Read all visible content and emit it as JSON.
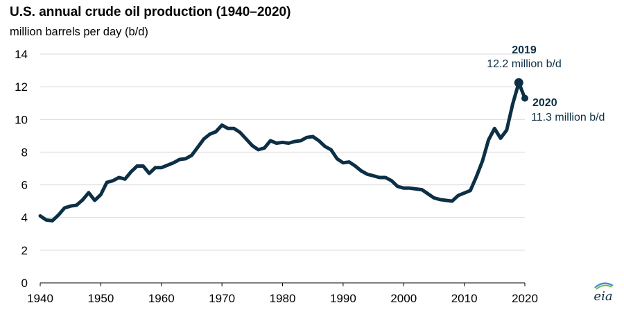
{
  "title": "U.S. annual crude oil production (1940–2020)",
  "subtitle": "million barrels per day (b/d)",
  "logo_text": "eia",
  "colors": {
    "line": "#0c2f45",
    "grid": "#d9d9d9",
    "axis": "#000000"
  },
  "chart_data": {
    "type": "line",
    "title": "U.S. annual crude oil production (1940–2020)",
    "ylabel": "million barrels per day (b/d)",
    "xlabel": "",
    "xlim": [
      1940,
      2020
    ],
    "ylim": [
      0,
      14
    ],
    "x_ticks": [
      1940,
      1950,
      1960,
      1970,
      1980,
      1990,
      2000,
      2010,
      2020
    ],
    "y_ticks": [
      0,
      2,
      4,
      6,
      8,
      10,
      12,
      14
    ],
    "grid": true,
    "legend": "none",
    "series": [
      {
        "x": [
          1940,
          1941,
          1942,
          1943,
          1944,
          1945,
          1946,
          1947,
          1948,
          1949,
          1950,
          1951,
          1952,
          1953,
          1954,
          1955,
          1956,
          1957,
          1958,
          1959,
          1960,
          1961,
          1962,
          1963,
          1964,
          1965,
          1966,
          1967,
          1968,
          1969,
          1970,
          1971,
          1972,
          1973,
          1974,
          1975,
          1976,
          1977,
          1978,
          1979,
          1980,
          1981,
          1982,
          1983,
          1984,
          1985,
          1986,
          1987,
          1988,
          1989,
          1990,
          1991,
          1992,
          1993,
          1994,
          1995,
          1996,
          1997,
          1998,
          1999,
          2000,
          2001,
          2002,
          2003,
          2004,
          2005,
          2006,
          2007,
          2008,
          2009,
          2010,
          2011,
          2012,
          2013,
          2014,
          2015,
          2016,
          2017,
          2018,
          2019,
          2020
        ],
        "values": [
          4.1,
          3.85,
          3.8,
          4.15,
          4.58,
          4.7,
          4.75,
          5.08,
          5.52,
          5.05,
          5.4,
          6.15,
          6.25,
          6.45,
          6.35,
          6.8,
          7.15,
          7.15,
          6.7,
          7.05,
          7.05,
          7.2,
          7.35,
          7.55,
          7.6,
          7.8,
          8.3,
          8.8,
          9.1,
          9.25,
          9.65,
          9.45,
          9.45,
          9.2,
          8.8,
          8.4,
          8.15,
          8.25,
          8.7,
          8.55,
          8.6,
          8.55,
          8.65,
          8.7,
          8.9,
          8.95,
          8.7,
          8.35,
          8.15,
          7.6,
          7.35,
          7.4,
          7.15,
          6.85,
          6.65,
          6.55,
          6.45,
          6.45,
          6.25,
          5.9,
          5.8,
          5.8,
          5.75,
          5.7,
          5.45,
          5.2,
          5.1,
          5.05,
          5.0,
          5.35,
          5.5,
          5.65,
          6.5,
          7.45,
          8.75,
          9.45,
          8.85,
          9.35,
          10.95,
          12.25,
          11.3
        ]
      }
    ],
    "highlights": [
      {
        "year": "2019",
        "x": 2019,
        "value": 12.25,
        "label": "12.2 million b/d"
      },
      {
        "year": "2020",
        "x": 2020,
        "value": 11.3,
        "label": "11.3 million b/d"
      }
    ]
  }
}
